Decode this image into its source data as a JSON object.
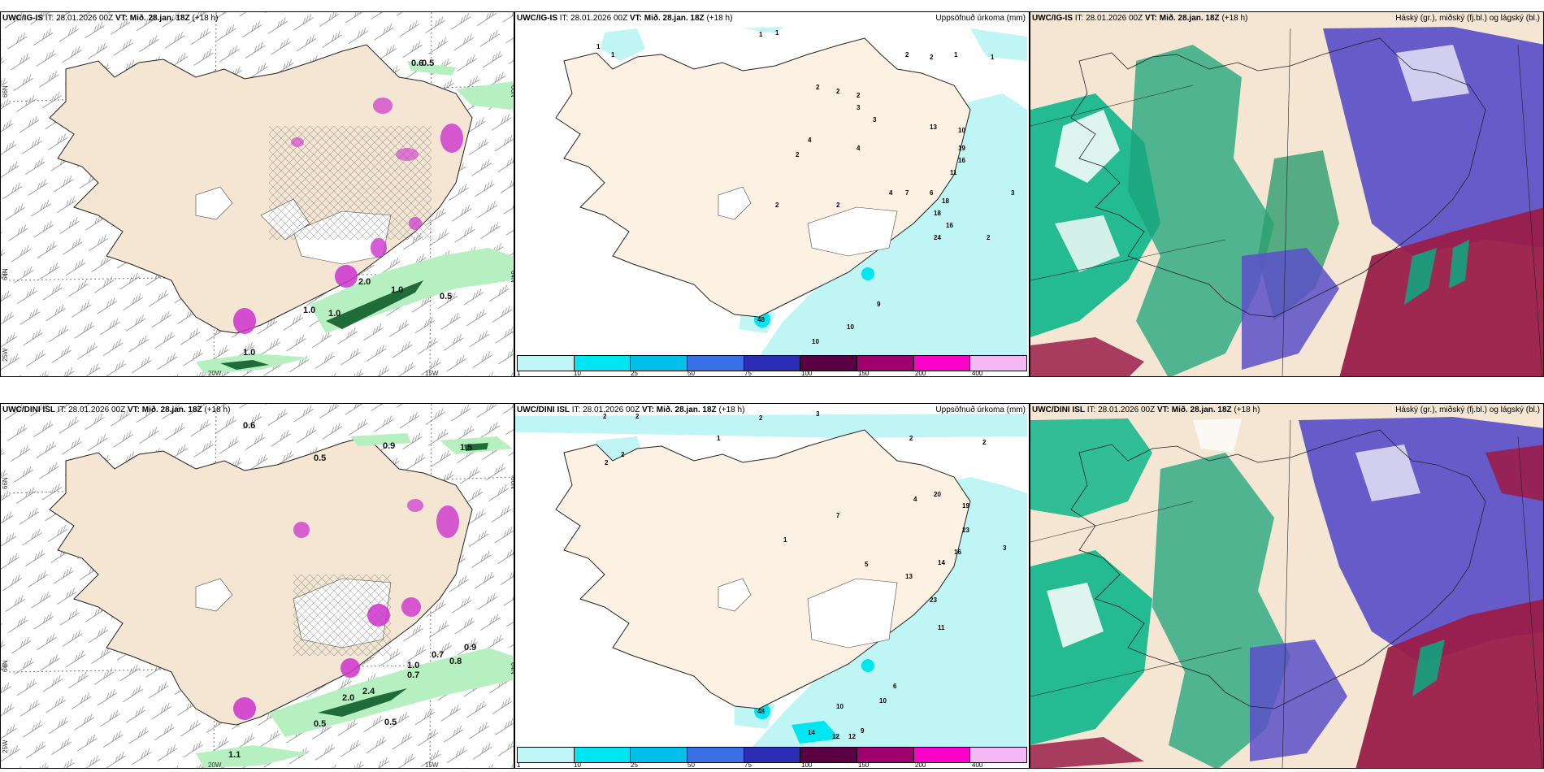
{
  "top": {
    "left": {
      "model": "UWC/IG-IS",
      "it_label": "IT:",
      "it_value": "28.01.2026 00Z",
      "vt_label": "VT:",
      "vt_value": "Mið. 28.jan. 18Z",
      "lead": "(+18 h)"
    },
    "middle": {
      "model": "UWC/IG-IS",
      "it_label": "IT:",
      "it_value": "28.01.2026 00Z",
      "vt_label": "VT:",
      "vt_value": "Mið. 28.jan. 18Z",
      "lead": "(+18 h)",
      "right_title": "Uppsöfnuð úrkoma (mm)"
    },
    "right": {
      "model": "UWC/IG-IS",
      "it_label": "IT:",
      "it_value": "28.01.2026 00Z",
      "vt_label": "VT:",
      "vt_value": "Mið. 28.jan. 18Z",
      "lead": "(+18 h)",
      "right_title": "Háský (gr.), miðský (fj.bl.) og lágský (bl.)"
    }
  },
  "bottom": {
    "left": {
      "model": "UWC/DINI ISL",
      "it_label": "IT:",
      "it_value": "28.01.2026 00Z",
      "vt_label": "VT:",
      "vt_value": "Mið. 28.jan. 18Z",
      "lead": "(+18 h)"
    },
    "middle": {
      "model": "UWC/DINI ISL",
      "it_label": "IT:",
      "it_value": "28.01.2026 00Z",
      "vt_label": "VT:",
      "vt_value": "Mið. 28.jan. 18Z",
      "lead": "(+18 h)",
      "right_title": "Uppsöfnuð úrkoma (mm)"
    },
    "right": {
      "model": "UWC/DINI ISL",
      "it_label": "IT:",
      "it_value": "28.01.2026 00Z",
      "vt_label": "VT:",
      "vt_value": "Mið. 28.jan. 18Z",
      "lead": "(+18 h)",
      "right_title": "Háský (gr.), miðský (fj.bl.) og lágský (bl.)"
    }
  },
  "axes": {
    "lat66": "66N",
    "lat64": "64N",
    "lon25": "25W",
    "lon20": "20W",
    "lon15": "15W"
  },
  "colorbar": {
    "ticks": [
      "1",
      "10",
      "25",
      "50",
      "75",
      "100",
      "150",
      "200",
      "400"
    ],
    "colors": [
      "#bff7f7",
      "#00e6f0",
      "#00bfe8",
      "#3b6fe6",
      "#2b2db5",
      "#5a0042",
      "#a0006e",
      "#ff00c8",
      "#f5b8f5"
    ]
  },
  "colors": {
    "land": "#f4e6d3",
    "land_dry": "#e8d8c4",
    "precip_light": "#c0f5f5",
    "cloud_high": "#00b386",
    "cloud_mid": "#5a4fc9",
    "cloud_low": "#9a1d4a",
    "green_light": "#b6f0c0",
    "green_dark": "#1f6b3a",
    "magenta": "#cc33cc"
  },
  "labels": {
    "top_left": [
      "0.6",
      "0.5",
      "1.0",
      "1.0",
      "2.0",
      "1.0",
      "0.5",
      "1.0"
    ],
    "top_mid": [
      "1",
      "1",
      "1",
      "1",
      "2",
      "2",
      "1",
      "1",
      "2",
      "2",
      "2",
      "3",
      "3",
      "4",
      "4",
      "13",
      "10",
      "19",
      "16",
      "11",
      "18",
      "18",
      "16",
      "24",
      "6",
      "4",
      "2",
      "7",
      "9",
      "10",
      "10",
      "48",
      "3",
      "2",
      "2",
      "2"
    ],
    "bottom_left": [
      "0.6",
      "0.5",
      "0.9",
      "1.5",
      "0.7",
      "0.9",
      "0.8",
      "0.7",
      "0.5",
      "0.5",
      "2.0",
      "2.4",
      "1.1",
      "1.0"
    ],
    "bottom_mid": [
      "2",
      "2",
      "2",
      "2",
      "3",
      "2",
      "1",
      "2",
      "2",
      "20",
      "19",
      "23",
      "16",
      "14",
      "13",
      "23",
      "5",
      "11",
      "9",
      "10",
      "10",
      "14",
      "12",
      "12",
      "48",
      "6",
      "4",
      "7",
      "3",
      "1"
    ]
  }
}
